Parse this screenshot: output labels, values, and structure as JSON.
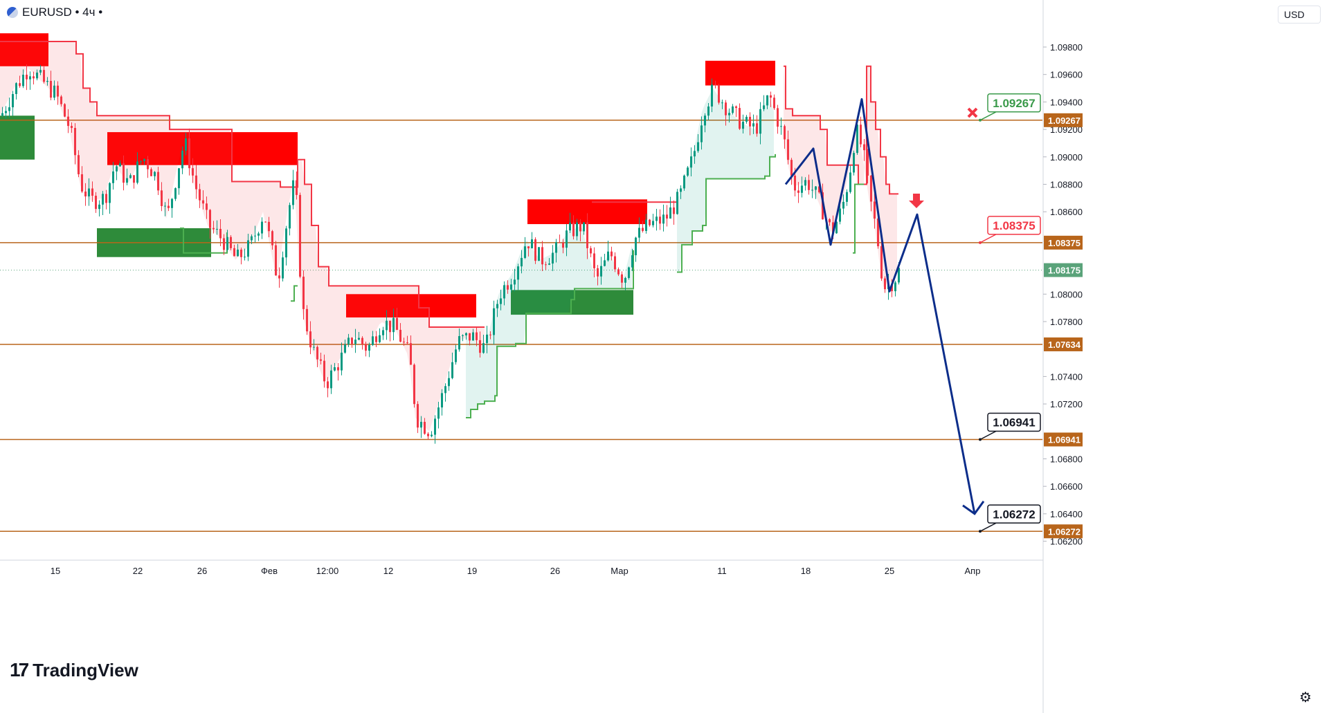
{
  "header": {
    "symbol_label": "EURUSD • 4ч •"
  },
  "currency": {
    "label": "USD"
  },
  "logo": {
    "text": "TradingView",
    "icon": "tradingview-logo-icon"
  },
  "icons": {
    "settings": "gear-icon",
    "close_marker": "close-x-icon",
    "down_arrow": "arrow-down-icon"
  },
  "colors": {
    "bull": "#089981",
    "bear": "#f23645",
    "level": "#b8651b",
    "path": "#0c2d8a",
    "supply_zone": "#ff0000",
    "demand_zone": "#2e8b3a",
    "current_price": "#5aa37a"
  },
  "chart_data": {
    "type": "candlestick",
    "symbol": "EURUSD",
    "timeframe": "4ч",
    "currency": "USD",
    "ylim": [
      1.0616,
      1.0996
    ],
    "y_ticks": [
      "1.09800",
      "1.09600",
      "1.09400",
      "1.09200",
      "1.09000",
      "1.08800",
      "1.08600",
      "1.08000",
      "1.07800",
      "1.07400",
      "1.07200",
      "1.06800",
      "1.06600",
      "1.06400",
      "1.06200"
    ],
    "x_ticks": [
      "15",
      "22",
      "26",
      "Фев",
      "12:00",
      "12",
      "19",
      "26",
      "Мар",
      "11",
      "18",
      "25",
      "Апр"
    ],
    "price_levels": [
      {
        "value": 1.09267,
        "label": "1.09267",
        "callout_color": "#3a9a4a"
      },
      {
        "value": 1.08375,
        "label": "1.08375",
        "callout_color": "#f23645"
      },
      {
        "value": 1.07634,
        "label": "1.07634",
        "callout_color": ""
      },
      {
        "value": 1.06941,
        "label": "1.06941",
        "callout_color": "#131722"
      },
      {
        "value": 1.06272,
        "label": "1.06272",
        "callout_color": "#131722"
      }
    ],
    "current_price": {
      "value": 1.08175,
      "label": "1.08175"
    },
    "supply_zones": [
      {
        "x0": 0,
        "x1": 70,
        "top": 1.099,
        "bottom": 1.0966
      },
      {
        "x0": 155,
        "x1": 430,
        "top": 1.0918,
        "bottom": 1.0894
      },
      {
        "x0": 500,
        "x1": 688,
        "top": 1.08,
        "bottom": 1.0783
      },
      {
        "x0": 762,
        "x1": 935,
        "top": 1.0869,
        "bottom": 1.0851
      },
      {
        "x0": 1019,
        "x1": 1120,
        "top": 1.097,
        "bottom": 1.0952
      }
    ],
    "demand_zones": [
      {
        "x0": 0,
        "x1": 50,
        "top": 1.093,
        "bottom": 1.0898
      },
      {
        "x0": 140,
        "x1": 305,
        "top": 1.0848,
        "bottom": 1.0827
      },
      {
        "x0": 738,
        "x1": 915,
        "top": 1.0803,
        "bottom": 1.0785
      }
    ],
    "projected_path": [
      {
        "x": 1135,
        "y": 1.088
      },
      {
        "x": 1175,
        "y": 1.0906
      },
      {
        "x": 1200,
        "y": 1.0836
      },
      {
        "x": 1245,
        "y": 1.0942
      },
      {
        "x": 1285,
        "y": 1.0802
      },
      {
        "x": 1325,
        "y": 1.0858
      },
      {
        "x": 1408,
        "y": 1.064
      }
    ],
    "resistance_trail": [
      [
        0,
        1.0984
      ],
      [
        100,
        1.0984
      ],
      [
        110,
        1.0975
      ],
      [
        120,
        1.095
      ],
      [
        130,
        1.094
      ],
      [
        140,
        1.093
      ],
      [
        240,
        1.093
      ],
      [
        245,
        1.092
      ],
      [
        330,
        1.092
      ],
      [
        335,
        1.0882
      ],
      [
        400,
        1.0882
      ],
      [
        405,
        1.0878
      ],
      [
        425,
        1.0878
      ],
      [
        430,
        1.0898
      ],
      [
        440,
        1.088
      ],
      [
        450,
        1.085
      ],
      [
        460,
        1.082
      ],
      [
        475,
        1.0806
      ],
      [
        600,
        1.0806
      ],
      [
        605,
        1.079
      ],
      [
        620,
        1.0776
      ],
      [
        685,
        1.0776
      ],
      [
        700,
        1.0776
      ]
    ],
    "resistance_trail_2": [
      [
        855,
        1.0867
      ],
      [
        975,
        1.0867
      ],
      [
        980,
        1.0867
      ]
    ],
    "resistance_trail_3": [
      [
        1132,
        1.0966
      ],
      [
        1135,
        1.0935
      ],
      [
        1145,
        1.093
      ],
      [
        1180,
        1.093
      ],
      [
        1185,
        1.092
      ],
      [
        1195,
        1.0894
      ],
      [
        1225,
        1.0894
      ],
      [
        1240,
        1.088
      ],
      [
        1250,
        1.088
      ],
      [
        1252,
        1.0966
      ],
      [
        1258,
        1.094
      ],
      [
        1265,
        1.092
      ],
      [
        1272,
        1.09
      ],
      [
        1280,
        1.088
      ],
      [
        1285,
        1.0873
      ],
      [
        1298,
        1.0873
      ]
    ],
    "support_trail": [
      [
        260,
        1.0848
      ],
      [
        265,
        1.083
      ],
      [
        325,
        1.083
      ],
      [
        328,
        1.0845
      ]
    ],
    "support_trail_2": [
      [
        420,
        1.0795
      ],
      [
        425,
        1.0806
      ],
      [
        430,
        1.0806
      ]
    ],
    "support_trail_3": [
      [
        673,
        1.071
      ],
      [
        680,
        1.0716
      ],
      [
        690,
        1.072
      ],
      [
        700,
        1.0722
      ],
      [
        715,
        1.0726
      ],
      [
        718,
        1.0762
      ],
      [
        745,
        1.0764
      ],
      [
        760,
        1.0786
      ],
      [
        825,
        1.0796
      ],
      [
        830,
        1.0804
      ],
      [
        905,
        1.0804
      ],
      [
        915,
        1.0832
      ]
    ],
    "support_trail_4": [
      [
        978,
        1.0816
      ],
      [
        985,
        1.0836
      ],
      [
        1000,
        1.0846
      ],
      [
        1015,
        1.085
      ],
      [
        1020,
        1.0884
      ],
      [
        1105,
        1.0886
      ],
      [
        1112,
        1.09
      ],
      [
        1120,
        1.0902
      ]
    ],
    "support_trail_5": [
      [
        1232,
        1.083
      ],
      [
        1235,
        1.088
      ],
      [
        1248,
        1.088
      ]
    ],
    "price_path": [
      [
        0,
        1.093
      ],
      [
        20,
        1.095
      ],
      [
        40,
        1.0965
      ],
      [
        60,
        1.0955
      ],
      [
        80,
        1.0945
      ],
      [
        100,
        1.092
      ],
      [
        115,
        1.088
      ],
      [
        130,
        1.0868
      ],
      [
        150,
        1.087
      ],
      [
        165,
        1.0895
      ],
      [
        185,
        1.088
      ],
      [
        205,
        1.09
      ],
      [
        225,
        1.0885
      ],
      [
        240,
        1.0855
      ],
      [
        255,
        1.089
      ],
      [
        265,
        1.0912
      ],
      [
        280,
        1.088
      ],
      [
        300,
        1.085
      ],
      [
        320,
        1.084
      ],
      [
        340,
        1.0825
      ],
      [
        360,
        1.0835
      ],
      [
        380,
        1.086
      ],
      [
        400,
        1.081
      ],
      [
        415,
        1.086
      ],
      [
        425,
        1.0885
      ],
      [
        435,
        1.079
      ],
      [
        450,
        1.076
      ],
      [
        470,
        1.0735
      ],
      [
        490,
        1.0752
      ],
      [
        510,
        1.077
      ],
      [
        530,
        1.076
      ],
      [
        550,
        1.078
      ],
      [
        570,
        1.0775
      ],
      [
        590,
        1.0755
      ],
      [
        600,
        1.071
      ],
      [
        620,
        1.07
      ],
      [
        640,
        1.073
      ],
      [
        660,
        1.0765
      ],
      [
        680,
        1.077
      ],
      [
        700,
        1.076
      ],
      [
        720,
        1.08
      ],
      [
        740,
        1.0815
      ],
      [
        760,
        1.084
      ],
      [
        780,
        1.0825
      ],
      [
        800,
        1.083
      ],
      [
        820,
        1.0845
      ],
      [
        840,
        1.085
      ],
      [
        860,
        1.081
      ],
      [
        880,
        1.083
      ],
      [
        900,
        1.081
      ],
      [
        915,
        1.084
      ],
      [
        935,
        1.085
      ],
      [
        960,
        1.0855
      ],
      [
        980,
        1.087
      ],
      [
        1000,
        1.09
      ],
      [
        1015,
        1.0935
      ],
      [
        1030,
        1.095
      ],
      [
        1050,
        1.0935
      ],
      [
        1070,
        1.0925
      ],
      [
        1090,
        1.092
      ],
      [
        1110,
        1.0945
      ],
      [
        1130,
        1.0915
      ],
      [
        1145,
        1.0878
      ],
      [
        1165,
        1.0882
      ],
      [
        1180,
        1.087
      ],
      [
        1200,
        1.0845
      ],
      [
        1215,
        1.0862
      ],
      [
        1225,
        1.0885
      ],
      [
        1235,
        1.092
      ],
      [
        1245,
        1.0905
      ],
      [
        1255,
        1.087
      ],
      [
        1265,
        1.0845
      ],
      [
        1275,
        1.0805
      ],
      [
        1290,
        1.081
      ],
      [
        1298,
        1.0818
      ]
    ]
  }
}
